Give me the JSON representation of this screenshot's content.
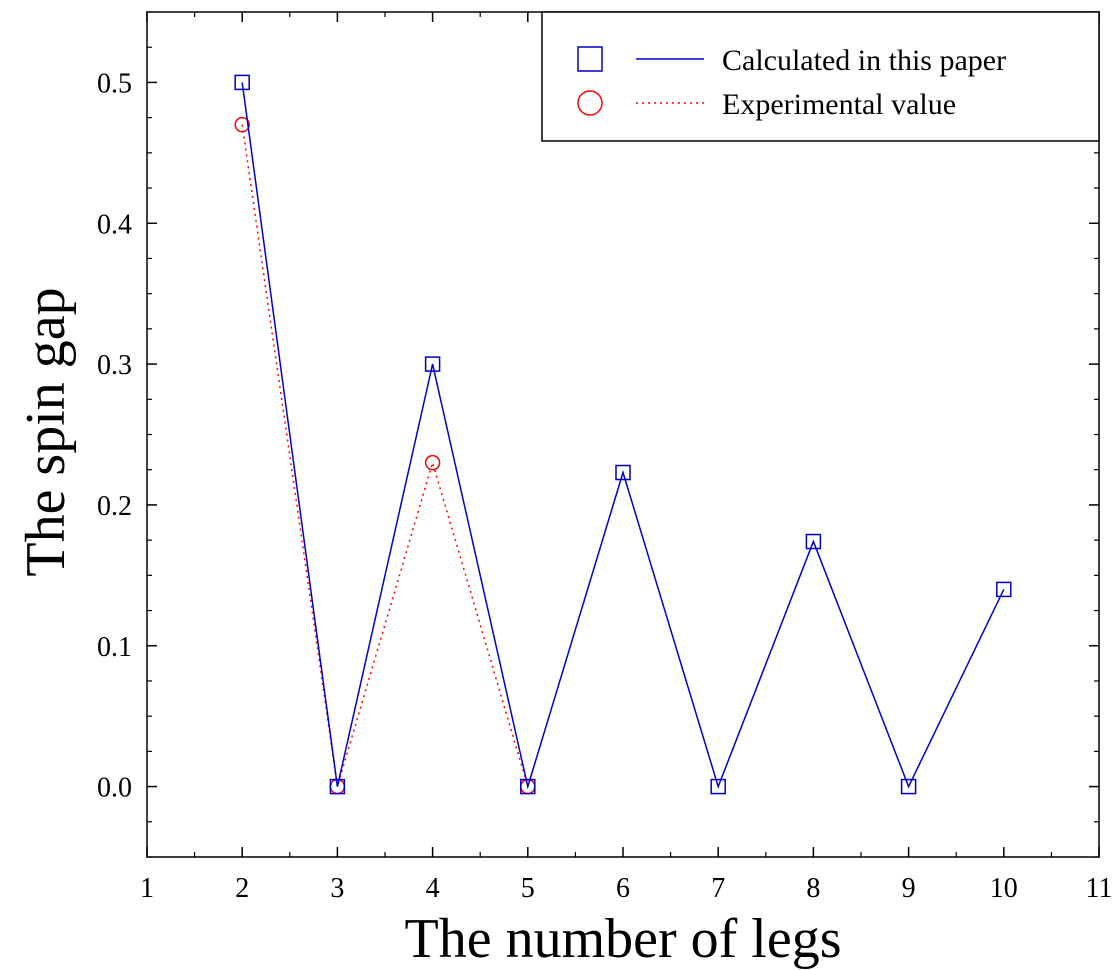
{
  "chart_data": {
    "type": "line",
    "title": "",
    "xlabel": "The number of legs",
    "ylabel": "The spin gap",
    "xlim": [
      1,
      11
    ],
    "ylim": [
      -0.05,
      0.55
    ],
    "xticks": [
      1,
      2,
      3,
      4,
      5,
      6,
      7,
      8,
      9,
      10,
      11
    ],
    "yticks": [
      0.0,
      0.1,
      0.2,
      0.3,
      0.4,
      0.5
    ],
    "ytick_labels": [
      "0.0",
      "0.1",
      "0.2",
      "0.3",
      "0.4",
      "0.5"
    ],
    "grid": false,
    "legend_position": "top-right",
    "series": [
      {
        "name": "Calculated in this paper",
        "marker": "square",
        "line_style": "solid",
        "color": "#0000cc",
        "x": [
          2,
          3,
          4,
          5,
          6,
          7,
          8,
          9,
          10
        ],
        "y": [
          0.5,
          0.0,
          0.3,
          0.0,
          0.223,
          0.0,
          0.174,
          0.0,
          0.14
        ]
      },
      {
        "name": "Experimental value",
        "marker": "circle",
        "line_style": "dotted",
        "color": "#ff0000",
        "x": [
          2,
          3,
          4,
          5
        ],
        "y": [
          0.47,
          0.0,
          0.23,
          0.0
        ]
      }
    ]
  }
}
